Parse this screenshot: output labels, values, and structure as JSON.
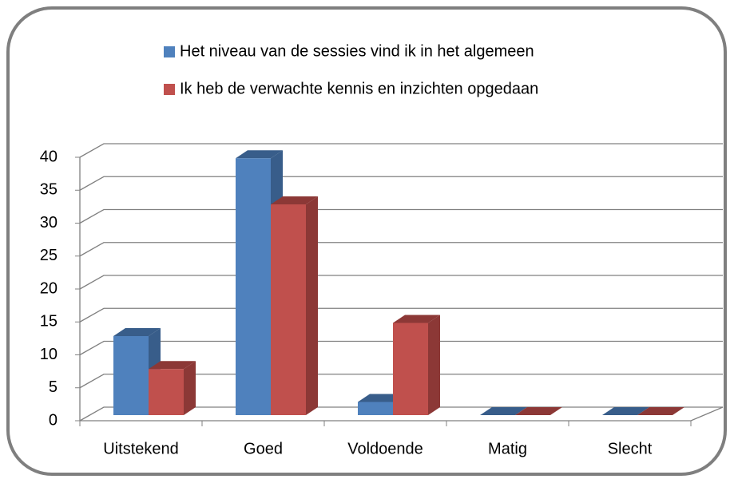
{
  "chart_data": {
    "type": "bar3d",
    "categories": [
      "Uitstekend",
      "Goed",
      "Voldoende",
      "Matig",
      "Slecht"
    ],
    "series": [
      {
        "name": "Het niveau van de sessies vind ik in het algemeen",
        "color": "#4f81bd",
        "side": "#385d8a",
        "values": [
          12,
          39,
          2,
          0,
          0
        ]
      },
      {
        "name": "Ik heb de verwachte kennis en inzichten opgedaan",
        "color": "#c0504d",
        "side": "#8c3836",
        "values": [
          7,
          32,
          14,
          0,
          0
        ]
      }
    ],
    "ylim": [
      0,
      40
    ],
    "yticks": [
      0,
      5,
      10,
      15,
      20,
      25,
      30,
      35,
      40
    ],
    "grid": true,
    "legend": "top"
  }
}
